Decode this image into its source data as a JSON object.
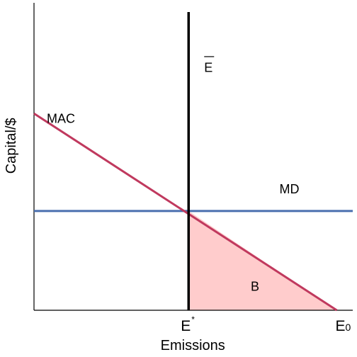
{
  "chart_data": {
    "type": "line",
    "title": "",
    "xlabel": "Emissions",
    "ylabel": "Capital/$",
    "xlim": [
      0,
      100
    ],
    "ylim": [
      0,
      100
    ],
    "grid": false,
    "ticks": {
      "x": [
        {
          "value": 48.5,
          "label": "E",
          "superscript": "*"
        },
        {
          "value": 95,
          "label": "E",
          "subscript": "0"
        }
      ]
    },
    "series": [
      {
        "name": "MAC",
        "color": "#c0395e",
        "x": [
          0,
          95
        ],
        "y": [
          64,
          0
        ]
      },
      {
        "name": "MD",
        "color": "#4a6faf",
        "x": [
          0,
          100
        ],
        "y": [
          32.3,
          32.3
        ]
      },
      {
        "name": "E",
        "color": "#000000",
        "overline": true,
        "x": [
          48.5,
          48.5
        ],
        "y": [
          0,
          97
        ]
      }
    ],
    "regions": [
      {
        "label": "B",
        "color": "#ffcccc",
        "vertices": [
          [
            48.5,
            0
          ],
          [
            48.5,
            32.3
          ],
          [
            95,
            0
          ]
        ]
      }
    ]
  }
}
